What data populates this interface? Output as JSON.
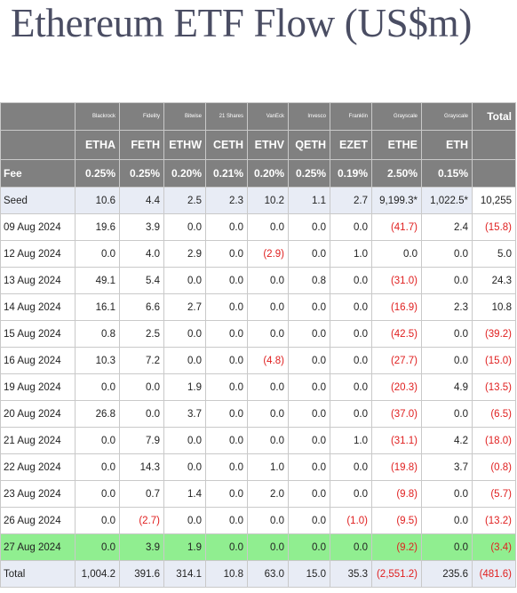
{
  "title": "Ethereum ETF Flow (US$m)",
  "columns": [
    {
      "issuer": "Blackrock",
      "ticker": "ETHA",
      "fee": "0.25%"
    },
    {
      "issuer": "Fidelity",
      "ticker": "FETH",
      "fee": "0.25%"
    },
    {
      "issuer": "Bitwise",
      "ticker": "ETHW",
      "fee": "0.20%"
    },
    {
      "issuer": "21 Shares",
      "ticker": "CETH",
      "fee": "0.21%"
    },
    {
      "issuer": "VanEck",
      "ticker": "ETHV",
      "fee": "0.20%"
    },
    {
      "issuer": "Invesco",
      "ticker": "QETH",
      "fee": "0.25%"
    },
    {
      "issuer": "Franklin",
      "ticker": "EZET",
      "fee": "0.19%"
    },
    {
      "issuer": "Grayscale",
      "ticker": "ETHE",
      "fee": "2.50%"
    },
    {
      "issuer": "Grayscale",
      "ticker": "ETH",
      "fee": "0.15%"
    }
  ],
  "total_header": "Total",
  "fee_label": "Fee",
  "rows": [
    {
      "label": "Seed",
      "cells": [
        "10.6",
        "4.4",
        "2.5",
        "2.3",
        "10.2",
        "1.1",
        "2.7",
        "9,199.3*",
        "1,022.5*",
        "10,255"
      ]
    },
    {
      "label": "09 Aug 2024",
      "cells": [
        "19.6",
        "3.9",
        "0.0",
        "0.0",
        "0.0",
        "0.0",
        "0.0",
        "(41.7)",
        "2.4",
        "(15.8)"
      ]
    },
    {
      "label": "12 Aug 2024",
      "cells": [
        "0.0",
        "4.0",
        "2.9",
        "0.0",
        "(2.9)",
        "0.0",
        "1.0",
        "0.0",
        "0.0",
        "5.0"
      ]
    },
    {
      "label": "13 Aug 2024",
      "cells": [
        "49.1",
        "5.4",
        "0.0",
        "0.0",
        "0.0",
        "0.8",
        "0.0",
        "(31.0)",
        "0.0",
        "24.3"
      ]
    },
    {
      "label": "14 Aug 2024",
      "cells": [
        "16.1",
        "6.6",
        "2.7",
        "0.0",
        "0.0",
        "0.0",
        "0.0",
        "(16.9)",
        "2.3",
        "10.8"
      ]
    },
    {
      "label": "15 Aug 2024",
      "cells": [
        "0.8",
        "2.5",
        "0.0",
        "0.0",
        "0.0",
        "0.0",
        "0.0",
        "(42.5)",
        "0.0",
        "(39.2)"
      ]
    },
    {
      "label": "16 Aug 2024",
      "cells": [
        "10.3",
        "7.2",
        "0.0",
        "0.0",
        "(4.8)",
        "0.0",
        "0.0",
        "(27.7)",
        "0.0",
        "(15.0)"
      ]
    },
    {
      "label": "19 Aug 2024",
      "cells": [
        "0.0",
        "0.0",
        "1.9",
        "0.0",
        "0.0",
        "0.0",
        "0.0",
        "(20.3)",
        "4.9",
        "(13.5)"
      ]
    },
    {
      "label": "20 Aug 2024",
      "cells": [
        "26.8",
        "0.0",
        "3.7",
        "0.0",
        "0.0",
        "0.0",
        "0.0",
        "(37.0)",
        "0.0",
        "(6.5)"
      ]
    },
    {
      "label": "21 Aug 2024",
      "cells": [
        "0.0",
        "7.9",
        "0.0",
        "0.0",
        "0.0",
        "0.0",
        "1.0",
        "(31.1)",
        "4.2",
        "(18.0)"
      ]
    },
    {
      "label": "22 Aug 2024",
      "cells": [
        "0.0",
        "14.3",
        "0.0",
        "0.0",
        "1.0",
        "0.0",
        "0.0",
        "(19.8)",
        "3.7",
        "(0.8)"
      ]
    },
    {
      "label": "23 Aug 2024",
      "cells": [
        "0.0",
        "0.7",
        "1.4",
        "0.0",
        "2.0",
        "0.0",
        "0.0",
        "(9.8)",
        "0.0",
        "(5.7)"
      ]
    },
    {
      "label": "26 Aug 2024",
      "cells": [
        "0.0",
        "(2.7)",
        "0.0",
        "0.0",
        "0.0",
        "0.0",
        "(1.0)",
        "(9.5)",
        "0.0",
        "(13.2)"
      ]
    },
    {
      "label": "27 Aug 2024",
      "cells": [
        "0.0",
        "3.9",
        "1.9",
        "0.0",
        "0.0",
        "0.0",
        "0.0",
        "(9.2)",
        "0.0",
        "(3.4)"
      ]
    },
    {
      "label": "Total",
      "cells": [
        "1,004.2",
        "391.6",
        "314.1",
        "10.8",
        "63.0",
        "15.0",
        "35.3",
        "(2,551.2)",
        "235.6",
        "(481.6)"
      ]
    }
  ],
  "colors": {
    "header_bg": "#808080",
    "seed_bg": "#e8ecf5",
    "highlight_bg": "#90ee90",
    "negative": "#e02020",
    "title": "#4a4d63"
  }
}
